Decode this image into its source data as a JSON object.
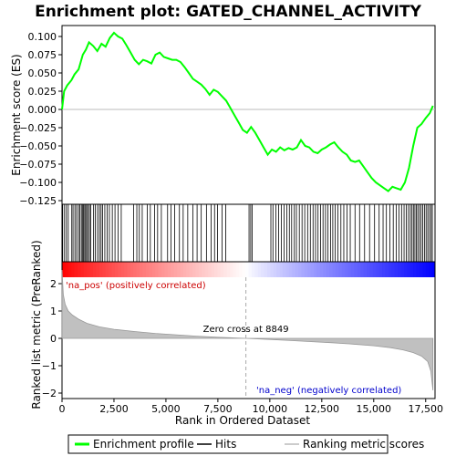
{
  "chart_data": {
    "type": "line",
    "title": "Enrichment plot: GATED_CHANNEL_ACTIVITY",
    "es_panel": {
      "ylabel": "Enrichment score (ES)",
      "ylim": [
        -0.13,
        0.115
      ],
      "yticks": [
        0.1,
        0.075,
        0.05,
        0.025,
        0.0,
        -0.025,
        -0.05,
        -0.075,
        -0.1,
        -0.125
      ],
      "ytick_labels": [
        "0.100",
        "0.075",
        "0.050",
        "0.025",
        "0.000",
        "−0.025",
        "−0.050",
        "−0.075",
        "−0.100",
        "−0.125"
      ],
      "line_color": "#00ff00",
      "x": [
        0,
        100,
        250,
        450,
        600,
        800,
        1000,
        1150,
        1300,
        1500,
        1700,
        1900,
        2100,
        2300,
        2500,
        2700,
        2900,
        3100,
        3300,
        3500,
        3700,
        3900,
        4100,
        4300,
        4500,
        4700,
        4900,
        5100,
        5300,
        5500,
        5700,
        5900,
        6100,
        6300,
        6500,
        6700,
        6900,
        7100,
        7300,
        7500,
        7700,
        7900,
        8100,
        8300,
        8500,
        8700,
        8900,
        9100,
        9300,
        9500,
        9700,
        9900,
        10100,
        10300,
        10500,
        10700,
        10900,
        11100,
        11300,
        11500,
        11700,
        11900,
        12100,
        12300,
        12500,
        12700,
        12900,
        13100,
        13300,
        13500,
        13700,
        13900,
        14100,
        14300,
        14500,
        14700,
        14900,
        15100,
        15300,
        15500,
        15700,
        15900,
        16100,
        16300,
        16500,
        16700,
        16900,
        17100,
        17300,
        17500,
        17700,
        17850
      ],
      "y": [
        0.0,
        0.025,
        0.033,
        0.04,
        0.048,
        0.055,
        0.075,
        0.082,
        0.092,
        0.087,
        0.08,
        0.09,
        0.086,
        0.098,
        0.105,
        0.1,
        0.097,
        0.088,
        0.078,
        0.068,
        0.062,
        0.068,
        0.066,
        0.063,
        0.075,
        0.078,
        0.072,
        0.07,
        0.068,
        0.068,
        0.065,
        0.058,
        0.05,
        0.042,
        0.038,
        0.034,
        0.028,
        0.02,
        0.027,
        0.024,
        0.018,
        0.012,
        0.002,
        -0.008,
        -0.018,
        -0.028,
        -0.032,
        -0.024,
        -0.032,
        -0.042,
        -0.052,
        -0.062,
        -0.055,
        -0.058,
        -0.052,
        -0.056,
        -0.053,
        -0.055,
        -0.052,
        -0.042,
        -0.05,
        -0.052,
        -0.058,
        -0.06,
        -0.055,
        -0.052,
        -0.048,
        -0.045,
        -0.052,
        -0.058,
        -0.062,
        -0.07,
        -0.072,
        -0.07,
        -0.078,
        -0.086,
        -0.094,
        -0.1,
        -0.104,
        -0.108,
        -0.112,
        -0.106,
        -0.108,
        -0.11,
        -0.1,
        -0.08,
        -0.05,
        -0.025,
        -0.02,
        -0.012,
        -0.005,
        0.005
      ]
    },
    "hits": [
      30,
      120,
      210,
      300,
      470,
      530,
      620,
      700,
      790,
      860,
      930,
      980,
      1030,
      1090,
      1140,
      1190,
      1260,
      1320,
      1380,
      1520,
      1600,
      1710,
      1800,
      1880,
      1950,
      2060,
      2170,
      2280,
      2420,
      2550,
      2700,
      2850,
      3450,
      3600,
      3720,
      3860,
      4100,
      4250,
      4450,
      4600,
      4780,
      5080,
      5240,
      5420,
      5650,
      5830,
      6050,
      6300,
      6500,
      6700,
      6950,
      7180,
      7340,
      7480,
      7700,
      7880,
      9000,
      9080,
      9150,
      10050,
      10150,
      10290,
      10420,
      10560,
      10690,
      10820,
      10940,
      11050,
      11180,
      11280,
      11420,
      11550,
      11680,
      11820,
      11950,
      12080,
      12200,
      12320,
      12440,
      12560,
      12680,
      12800,
      12920,
      13030,
      13150,
      13280,
      13420,
      13560,
      13710,
      13870,
      14100,
      14320,
      14560,
      14800,
      15040,
      15260,
      15450,
      15610,
      15780,
      15940,
      16080,
      16210,
      16340,
      16460,
      16570,
      16670,
      16760,
      16840,
      16910,
      16980,
      17050,
      17120,
      17200,
      17280,
      17360,
      17440,
      17520,
      17600,
      17680,
      17760,
      17820
    ],
    "metric_panel": {
      "ylabel": "Ranked list metric (PreRanked)",
      "xlabel": "Rank in Ordered Dataset",
      "ylim": [
        -2.2,
        2.8
      ],
      "yticks": [
        2,
        1,
        0,
        -1,
        -2
      ],
      "ytick_labels": [
        "2",
        "1",
        "0",
        "−1",
        "−2"
      ],
      "x": [
        0,
        60,
        150,
        300,
        500,
        800,
        1200,
        1800,
        2500,
        3500,
        4500,
        5500,
        6500,
        7500,
        8849,
        10000,
        11000,
        12000,
        13000,
        14000,
        15000,
        15800,
        16400,
        16900,
        17300,
        17600,
        17750,
        17850
      ],
      "y": [
        2.5,
        1.6,
        1.25,
        1.0,
        0.85,
        0.7,
        0.55,
        0.42,
        0.33,
        0.25,
        0.18,
        0.13,
        0.08,
        0.04,
        0.0,
        -0.04,
        -0.08,
        -0.12,
        -0.16,
        -0.21,
        -0.27,
        -0.34,
        -0.42,
        -0.52,
        -0.65,
        -0.85,
        -1.2,
        -1.9
      ],
      "zero_cross_label": "Zero cross at 8849",
      "zero_cross": 8849,
      "pos_label": "'na_pos' (positively correlated)",
      "neg_label": "'na_neg' (negatively correlated)",
      "pos_color": "#cc0000",
      "neg_color": "#0000cc"
    },
    "xlim": [
      0,
      17950
    ],
    "xticks": [
      0,
      2500,
      5000,
      7500,
      10000,
      12500,
      15000,
      17500
    ],
    "xtick_labels": [
      "0",
      "2,500",
      "5,000",
      "7,500",
      "10,000",
      "12,500",
      "15,000",
      "17,500"
    ],
    "legend": {
      "placement": "bottom",
      "items": [
        {
          "label": "Enrichment profile",
          "color": "#00ff00",
          "kind": "line"
        },
        {
          "label": "Hits",
          "color": "#000000",
          "kind": "line"
        },
        {
          "label": "Ranking metric scores",
          "color": "#bbbbbb",
          "kind": "line"
        }
      ]
    }
  }
}
